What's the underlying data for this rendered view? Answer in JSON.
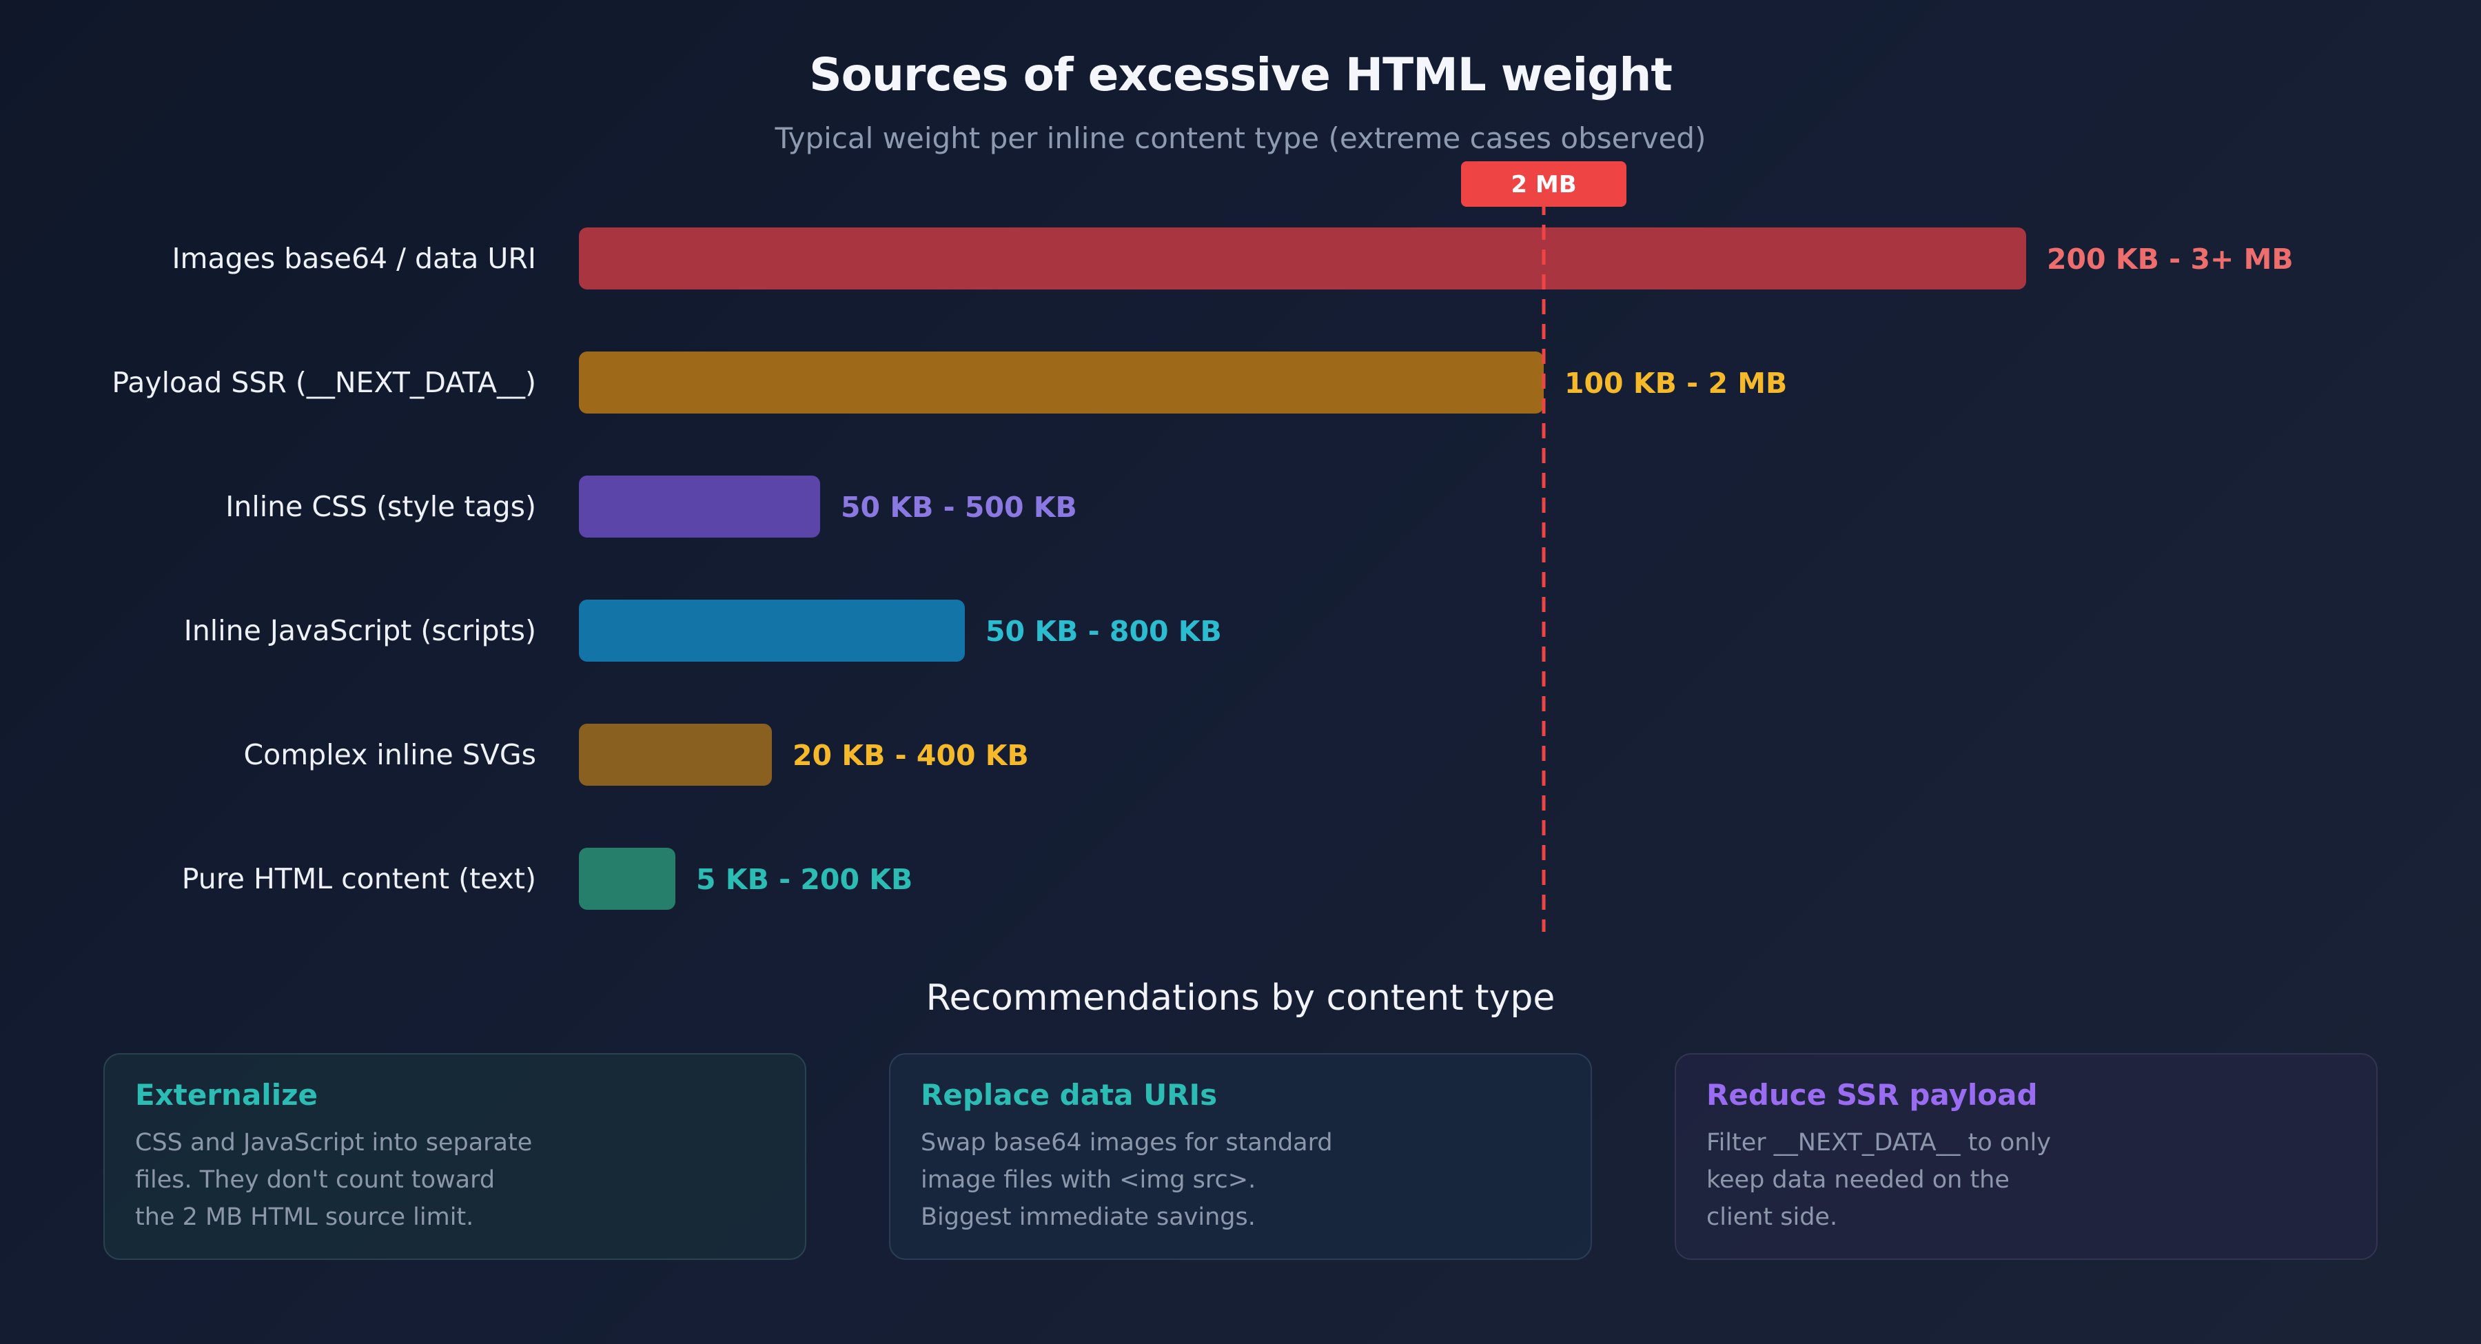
{
  "title": "Sources of excessive HTML weight",
  "subtitle": "Typical weight per inline content type (extreme cases observed)",
  "chart_data": {
    "type": "bar",
    "orientation": "horizontal",
    "unit": "KB",
    "xlim": [
      0,
      3000
    ],
    "categories": [
      "Images base64 / data URI",
      "Payload SSR (__NEXT_DATA__)",
      "Inline CSS (style tags)",
      "Inline JavaScript (scripts)",
      "Complex inline SVGs",
      "Pure HTML content (text)"
    ],
    "values": [
      3000,
      2000,
      500,
      800,
      400,
      200
    ],
    "value_labels": [
      "200 KB - 3+ MB",
      "100 KB - 2 MB",
      "50 KB - 500 KB",
      "50 KB - 800 KB",
      "20 KB - 400 KB",
      "5 KB - 200 KB"
    ],
    "colors": [
      "#a8353f",
      "#9e6a1a",
      "#5c45a8",
      "#1374a8",
      "#8a6020",
      "#257f6b"
    ],
    "label_colors": [
      "#ee6e6e",
      "#f5b92a",
      "#8b78e0",
      "#2bbcd0",
      "#f5b92a",
      "#2bbcb4"
    ],
    "reference_line": {
      "label": "2 MB",
      "value": 2000,
      "color": "#ef4444"
    }
  },
  "recommendations": {
    "heading": "Recommendations by content type",
    "cards": [
      {
        "title": "Externalize",
        "lines": [
          "CSS and JavaScript into separate",
          "files. They don't count toward",
          "the 2 MB HTML source limit."
        ]
      },
      {
        "title": "Replace data URIs",
        "lines": [
          "Swap base64 images for standard",
          "image files with <img src>.",
          "Biggest immediate savings."
        ]
      },
      {
        "title": "Reduce SSR payload",
        "lines": [
          "Filter __NEXT_DATA__ to only",
          "keep data needed on the",
          "client side."
        ]
      }
    ]
  }
}
